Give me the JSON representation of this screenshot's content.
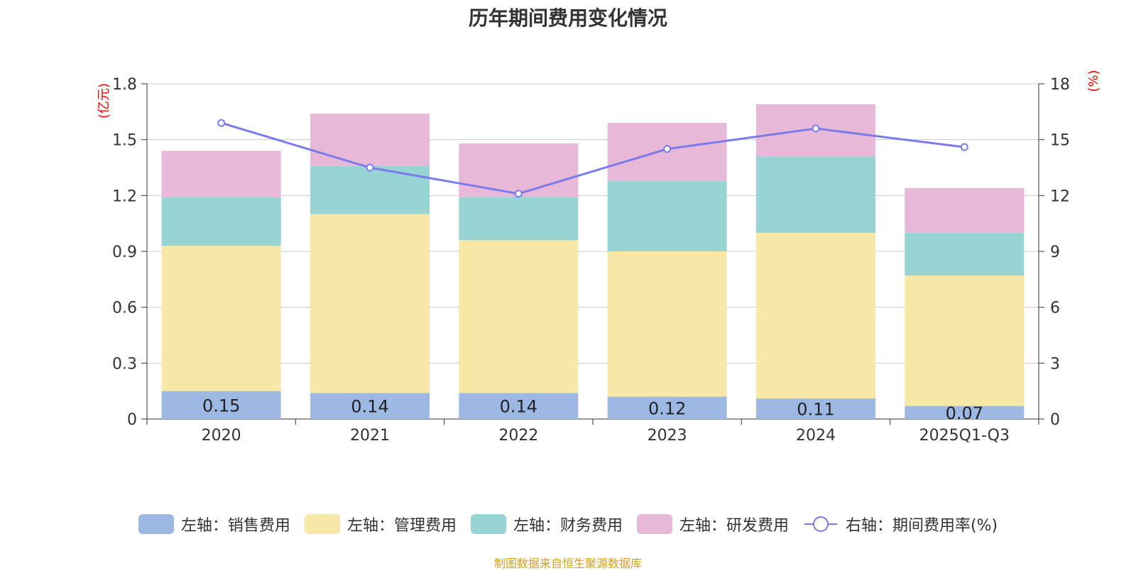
{
  "chart_data": {
    "type": "bar",
    "title": "历年期间费用变化情况",
    "categories": [
      "2020",
      "2021",
      "2022",
      "2023",
      "2024",
      "2025Q1-Q3"
    ],
    "left_axis": {
      "label": "(亿元)",
      "ylim": [
        0,
        1.8
      ],
      "ticks": [
        "0",
        "0.3",
        "0.6",
        "0.9",
        "1.2",
        "1.5",
        "1.8"
      ]
    },
    "right_axis": {
      "label": "(%)",
      "ylim": [
        0,
        18
      ],
      "ticks": [
        "0",
        "3",
        "6",
        "9",
        "12",
        "15",
        "18"
      ]
    },
    "series": [
      {
        "name": "左轴：销售费用",
        "type": "bar",
        "stack": true,
        "color": "#9db8e2",
        "values": [
          0.15,
          0.14,
          0.14,
          0.12,
          0.11,
          0.07
        ],
        "labels": [
          "0.15",
          "0.14",
          "0.14",
          "0.12",
          "0.11",
          "0.07"
        ]
      },
      {
        "name": "左轴：管理费用",
        "type": "bar",
        "stack": true,
        "color": "#f8e8a8",
        "values": [
          0.78,
          0.96,
          0.82,
          0.78,
          0.89,
          0.7
        ]
      },
      {
        "name": "左轴：财务费用",
        "type": "bar",
        "stack": true,
        "color": "#98d4d4",
        "values": [
          0.26,
          0.26,
          0.23,
          0.38,
          0.41,
          0.23
        ]
      },
      {
        "name": "左轴：研发费用",
        "type": "bar",
        "stack": true,
        "color": "#e8b8d8",
        "values": [
          0.25,
          0.28,
          0.29,
          0.31,
          0.28,
          0.24
        ]
      },
      {
        "name": "右轴：期间费用率(%)",
        "type": "line",
        "axis": "right",
        "color": "#7b7bec",
        "values": [
          15.9,
          13.5,
          12.1,
          14.5,
          15.6,
          14.6
        ]
      }
    ]
  },
  "source": "制图数据来自恒生聚源数据库"
}
